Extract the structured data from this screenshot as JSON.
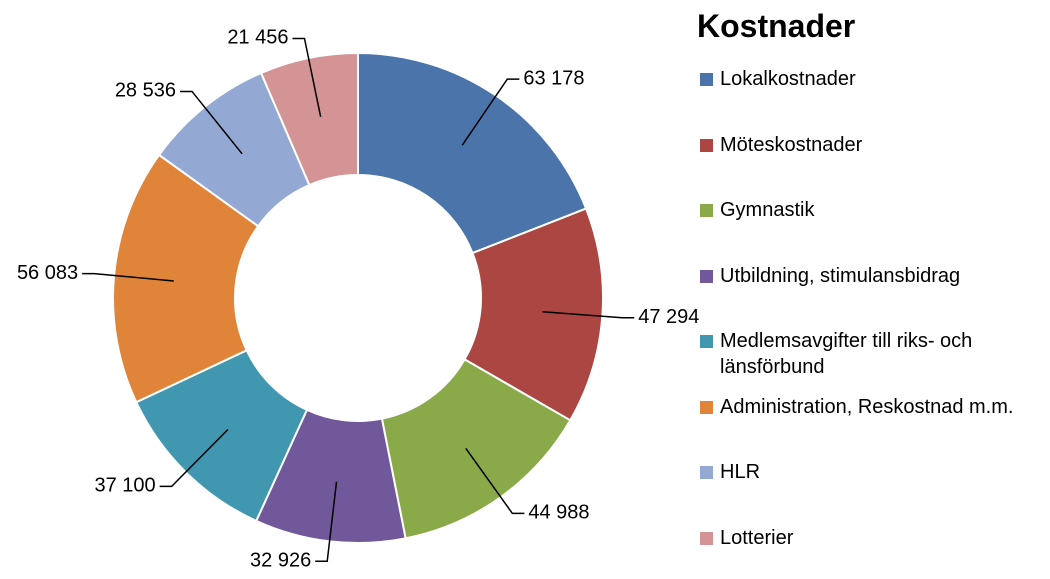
{
  "chart_data": {
    "type": "donut",
    "title": "Kostnader",
    "categories": [
      "Lokalkostnader",
      "Möteskostnader",
      "Gymnastik",
      "Utbildning, stimulansbidrag",
      "Medlemsavgifter till riks- och länsförbund",
      "Administration, Reskostnad m.m.",
      "HLR",
      "Lotterier"
    ],
    "values": [
      63178,
      47294,
      44988,
      32926,
      37100,
      56083,
      28536,
      21456
    ],
    "value_labels": [
      "63 178",
      "47 294",
      "44 988",
      "32 926",
      "37 100",
      "56 083",
      "28 536",
      "21 456"
    ],
    "colors": [
      "#4a74aa",
      "#ab4642",
      "#8aaa4a",
      "#71589a",
      "#4197b0",
      "#e0843a",
      "#93a9d4",
      "#d49394"
    ],
    "legend": "right"
  }
}
